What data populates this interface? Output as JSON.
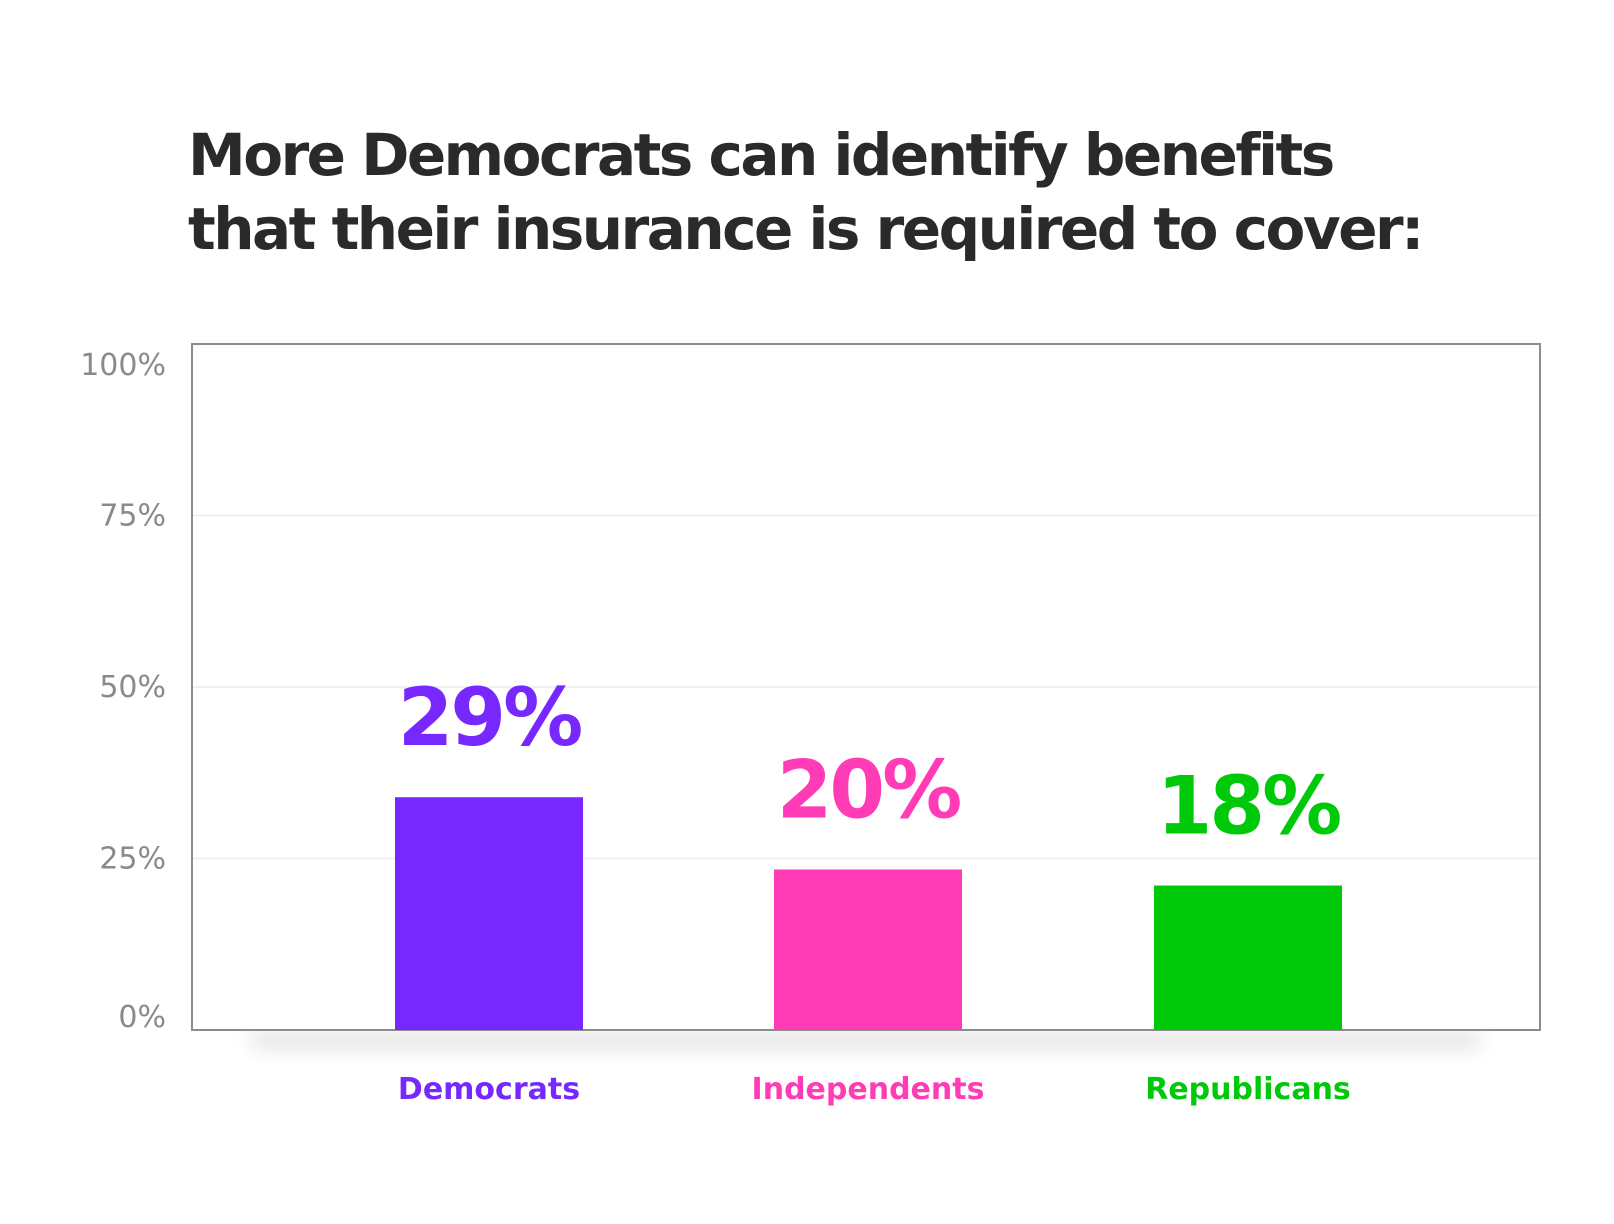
{
  "chart_data": {
    "type": "bar",
    "title_lines": [
      "More Democrats can identify benefits",
      "that their insurance is required to cover:"
    ],
    "categories": [
      "Democrats",
      "Independents",
      "Republicans"
    ],
    "values": [
      29,
      20,
      18
    ],
    "value_labels": [
      "29%",
      "20%",
      "18%"
    ],
    "colors": [
      "#7628ff",
      "#ff3bb6",
      "#00c90a"
    ],
    "ylim": [
      0,
      100
    ],
    "yticks": [
      0,
      25,
      50,
      75,
      100
    ],
    "ytick_labels": [
      "0%",
      "25%",
      "50%",
      "75%",
      "100%"
    ],
    "xlabel": "",
    "ylabel": "",
    "grid": true,
    "legend": "none"
  }
}
